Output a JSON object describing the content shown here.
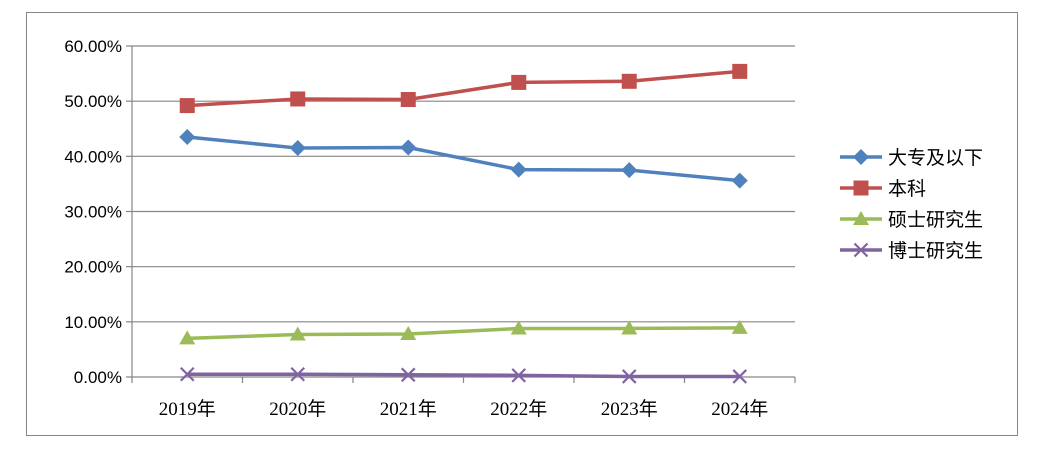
{
  "chart_data": {
    "type": "line",
    "categories": [
      "2019年",
      "2020年",
      "2021年",
      "2022年",
      "2023年",
      "2024年"
    ],
    "series": [
      {
        "name": "大专及以下",
        "values": [
          43.5,
          41.5,
          41.6,
          37.6,
          37.5,
          35.6
        ],
        "color": "#4F81BD",
        "marker": "diamond"
      },
      {
        "name": "本科",
        "values": [
          49.2,
          50.4,
          50.3,
          53.4,
          53.6,
          55.4
        ],
        "color": "#C0504D",
        "marker": "square"
      },
      {
        "name": "硕士研究生",
        "values": [
          7.0,
          7.7,
          7.8,
          8.8,
          8.8,
          8.9
        ],
        "color": "#9BBB59",
        "marker": "triangle"
      },
      {
        "name": "博士研究生",
        "values": [
          0.5,
          0.5,
          0.4,
          0.3,
          0.1,
          0.1
        ],
        "color": "#8064A2",
        "marker": "x"
      }
    ],
    "ylim": [
      0,
      60
    ],
    "yticks": [
      "0.00%",
      "10.00%",
      "20.00%",
      "30.00%",
      "40.00%",
      "50.00%",
      "60.00%"
    ],
    "grid": true,
    "legend_position": "right"
  }
}
